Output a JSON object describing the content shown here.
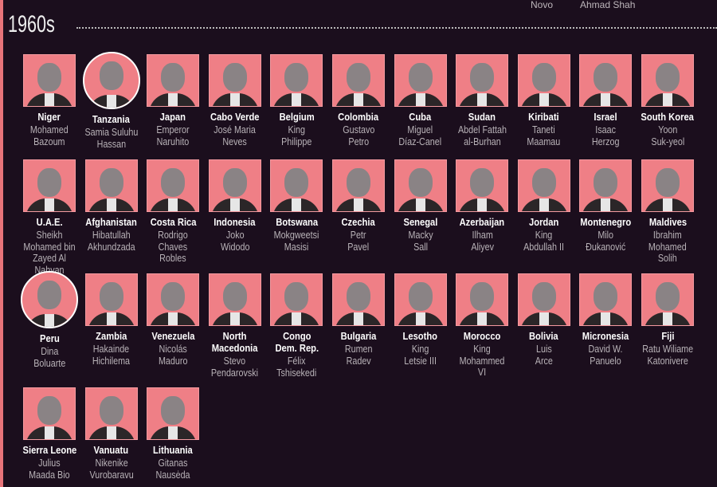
{
  "top_fragment": [
    "Novo",
    "Ahmad Shah"
  ],
  "decade_label": "1960s",
  "colors": {
    "background": "#1b0e1d",
    "accent": "#ef7f86",
    "text": "#ffffff",
    "subtext": "#b9b3b8"
  },
  "leaders": [
    {
      "country": "Niger",
      "name": "Mohamed\nBazoum"
    },
    {
      "country": "Tanzania",
      "name": "Samia Suluhu\nHassan",
      "round": true
    },
    {
      "country": "Japan",
      "name": "Emperor\nNaruhito"
    },
    {
      "country": "Cabo Verde",
      "name": "José Maria\nNeves"
    },
    {
      "country": "Belgium",
      "name": "King\nPhilippe"
    },
    {
      "country": "Colombia",
      "name": "Gustavo\nPetro"
    },
    {
      "country": "Cuba",
      "name": "Miguel\nDíaz-Canel"
    },
    {
      "country": "Sudan",
      "name": "Abdel Fattah\nal-Burhan"
    },
    {
      "country": "Kiribati",
      "name": "Taneti\nMaamau"
    },
    {
      "country": "Israel",
      "name": "Isaac\nHerzog"
    },
    {
      "country": "South Korea",
      "name": "Yoon\nSuk-yeol"
    },
    {
      "country": "U.A.E.",
      "name": "Sheikh\nMohamed bin\nZayed Al Nahyan"
    },
    {
      "country": "Afghanistan",
      "name": "Hibatullah\nAkhundzada"
    },
    {
      "country": "Costa Rica",
      "name": "Rodrigo\nChaves\nRobles"
    },
    {
      "country": "Indonesia",
      "name": "Joko\nWidodo"
    },
    {
      "country": "Botswana",
      "name": "Mokgweetsi\nMasisi"
    },
    {
      "country": "Czechia",
      "name": "Petr\nPavel"
    },
    {
      "country": "Senegal",
      "name": "Macky\nSall"
    },
    {
      "country": "Azerbaijan",
      "name": "Ilham\nAliyev"
    },
    {
      "country": "Jordan",
      "name": "King\nAbdullah II"
    },
    {
      "country": "Montenegro",
      "name": "Milo\nĐukanović"
    },
    {
      "country": "Maldives",
      "name": "Ibrahim\nMohamed\nSolih"
    },
    {
      "country": "Peru",
      "name": "Dina\nBoluarte",
      "round": true
    },
    {
      "country": "Zambia",
      "name": "Hakainde\nHichilema"
    },
    {
      "country": "Venezuela",
      "name": "Nicolás\nMaduro"
    },
    {
      "country": "North\nMacedonia",
      "name": "Stevo\nPendarovski"
    },
    {
      "country": "Congo\nDem. Rep.",
      "name": "Félix\nTshisekedi"
    },
    {
      "country": "Bulgaria",
      "name": "Rumen\nRadev"
    },
    {
      "country": "Lesotho",
      "name": "King\nLetsie III"
    },
    {
      "country": "Morocco",
      "name": "King\nMohammed VI"
    },
    {
      "country": "Bolivia",
      "name": "Luis\nArce"
    },
    {
      "country": "Micronesia",
      "name": "David W.\nPanuelo"
    },
    {
      "country": "Fiji",
      "name": "Ratu Wiliame\nKatonivere"
    },
    {
      "country": "Sierra Leone",
      "name": "Julius\nMaada Bio"
    },
    {
      "country": "Vanuatu",
      "name": "Nikenike\nVurobaravu"
    },
    {
      "country": "Lithuania",
      "name": "Gitanas\nNausėda"
    }
  ]
}
